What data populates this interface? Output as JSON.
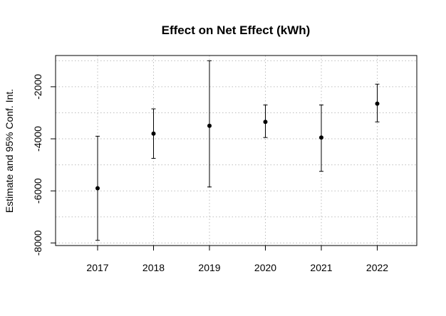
{
  "chart_data": {
    "type": "scatter",
    "title": "Effect on Net Effect (kWh)",
    "xlabel": "",
    "ylabel": "Estimate and 95% Conf. Int.",
    "categories": [
      "2017",
      "2018",
      "2019",
      "2020",
      "2021",
      "2022"
    ],
    "series": [
      {
        "estimate": [
          -5900,
          -3800,
          -3500,
          -3350,
          -3950,
          -2650
        ],
        "ci_lower": [
          -7900,
          -4750,
          -5850,
          -3950,
          -5250,
          -3350
        ],
        "ci_upper": [
          -3900,
          -2850,
          -1000,
          -2700,
          -2700,
          -1900
        ]
      }
    ],
    "yticks": [
      -8000,
      -6000,
      -4000,
      -2000
    ],
    "ylim": [
      -8100,
      -800
    ],
    "grid": true,
    "colors": {
      "point": "#000000",
      "grid": "#bdbdbd"
    }
  }
}
